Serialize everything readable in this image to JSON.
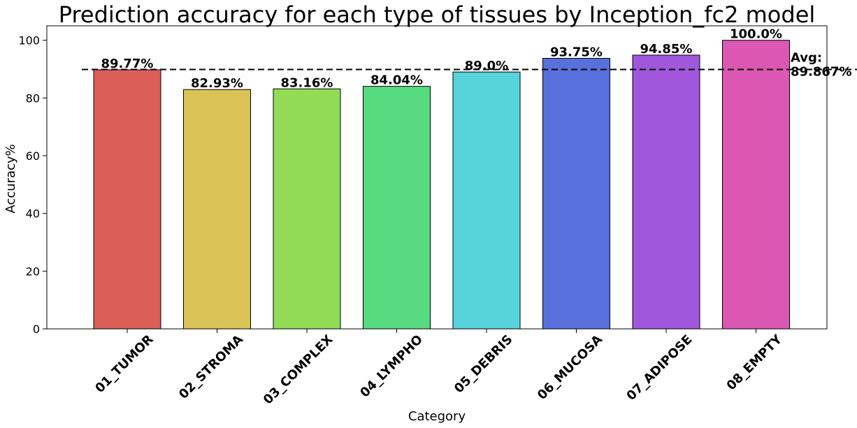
{
  "chart_data": {
    "type": "bar",
    "title": "Prediction accuracy for each type of tissues by Inception_fc2 model",
    "xlabel": "Category",
    "ylabel": "Accuracy%",
    "ylim": [
      0,
      105
    ],
    "yticks": [
      "0",
      "20",
      "40",
      "60",
      "80",
      "100"
    ],
    "grid": false,
    "categories": [
      "01_TUMOR",
      "02_STROMA",
      "03_COMPLEX",
      "04_LYMPHO",
      "05_DEBRIS",
      "06_MUCOSA",
      "07_ADIPOSE",
      "08_EMPTY"
    ],
    "values": [
      89.77,
      82.93,
      83.16,
      84.04,
      89.0,
      93.75,
      94.85,
      100.0
    ],
    "value_labels": [
      "89.77%",
      "82.93%",
      "83.16%",
      "84.04%",
      "89.0%",
      "93.75%",
      "94.85%",
      "100.0%"
    ],
    "colors": [
      "#db5f57",
      "#dbc257",
      "#91db57",
      "#57db80",
      "#57d3db",
      "#5770db",
      "#a157db",
      "#db57b2"
    ],
    "average": {
      "value": 89.867,
      "label_line1": "Avg:",
      "label_line2": "89.867%",
      "style": "dashed"
    }
  }
}
